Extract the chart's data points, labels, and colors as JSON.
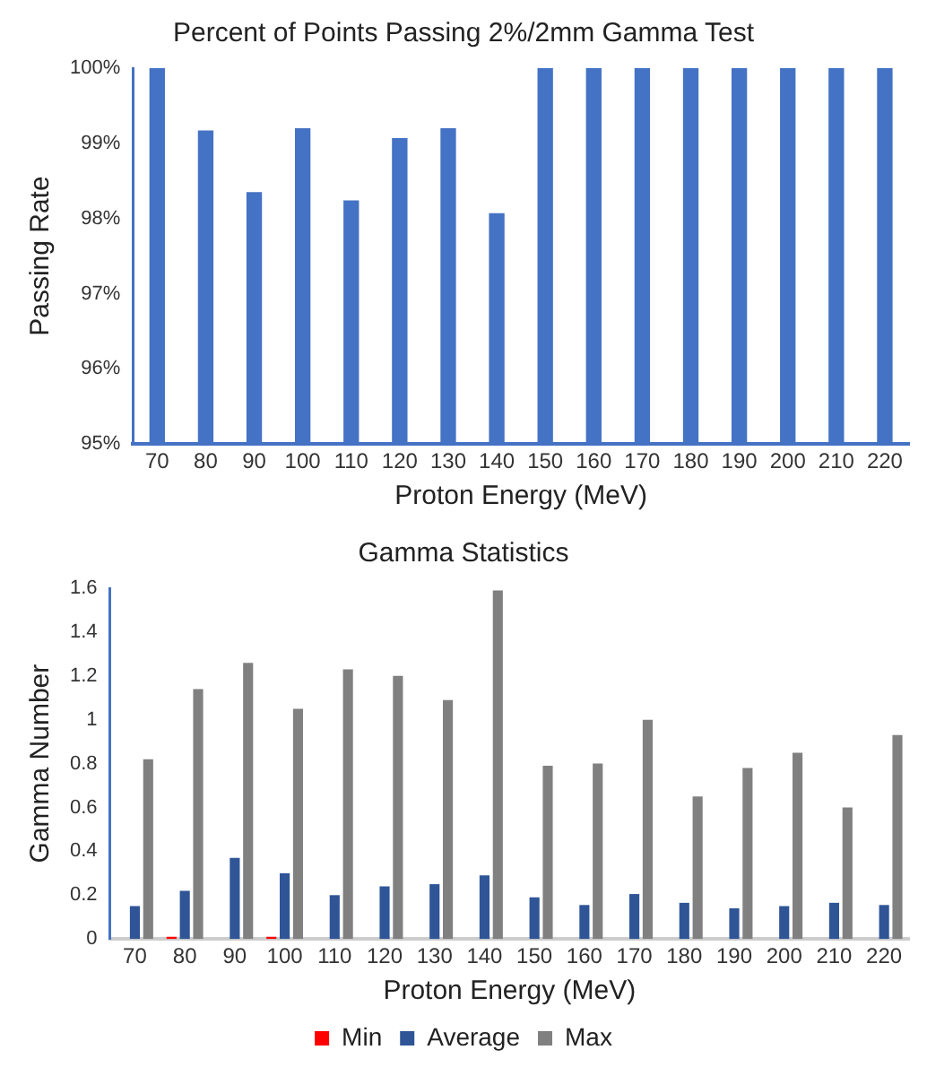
{
  "chart_data": [
    {
      "type": "bar",
      "title": "Percent of Points Passing 2%/2mm Gamma Test",
      "xlabel": "Proton Energy (MeV)",
      "ylabel": "Passing Rate",
      "categories": [
        "70",
        "80",
        "90",
        "100",
        "110",
        "120",
        "130",
        "140",
        "150",
        "160",
        "170",
        "180",
        "190",
        "200",
        "210",
        "220"
      ],
      "values": [
        100,
        99.17,
        98.35,
        99.2,
        98.24,
        99.07,
        99.2,
        98.07,
        100,
        100,
        100,
        100,
        100,
        100,
        100,
        100
      ],
      "color": "#4472c4",
      "ylim": [
        95,
        100
      ],
      "yticks": [
        {
          "value": 95,
          "label": "95%"
        },
        {
          "value": 96,
          "label": "96%"
        },
        {
          "value": 97,
          "label": "97%"
        },
        {
          "value": 98,
          "label": "98%"
        },
        {
          "value": 99,
          "label": "99%"
        },
        {
          "value": 100,
          "label": "100%"
        }
      ],
      "grid": false,
      "legend": false
    },
    {
      "type": "bar",
      "title": "Gamma Statistics",
      "xlabel": "Proton Energy (MeV)",
      "ylabel": "Gamma Number",
      "categories": [
        "70",
        "80",
        "90",
        "100",
        "110",
        "120",
        "130",
        "140",
        "150",
        "160",
        "170",
        "180",
        "190",
        "200",
        "210",
        "220"
      ],
      "series": [
        {
          "name": "Min",
          "color": "#ff0000",
          "values": [
            0,
            0.01,
            0,
            0.01,
            0,
            0,
            0,
            0,
            0,
            0,
            0,
            0,
            0,
            0,
            0,
            0
          ]
        },
        {
          "name": "Average",
          "color": "#2f5597",
          "values": [
            0.15,
            0.22,
            0.37,
            0.3,
            0.2,
            0.24,
            0.25,
            0.29,
            0.19,
            0.155,
            0.205,
            0.165,
            0.14,
            0.15,
            0.165,
            0.155
          ]
        },
        {
          "name": "Max",
          "color": "#808080",
          "values": [
            0.82,
            1.14,
            1.26,
            1.05,
            1.23,
            1.2,
            1.09,
            1.59,
            0.79,
            0.8,
            1.0,
            0.65,
            0.78,
            0.85,
            0.6,
            0.93
          ]
        }
      ],
      "ylim": [
        0,
        1.6
      ],
      "yticks": [
        0,
        0.2,
        0.4,
        0.6,
        0.8,
        1,
        1.2,
        1.4,
        1.6
      ],
      "grid": false,
      "legend": "bottom"
    }
  ]
}
